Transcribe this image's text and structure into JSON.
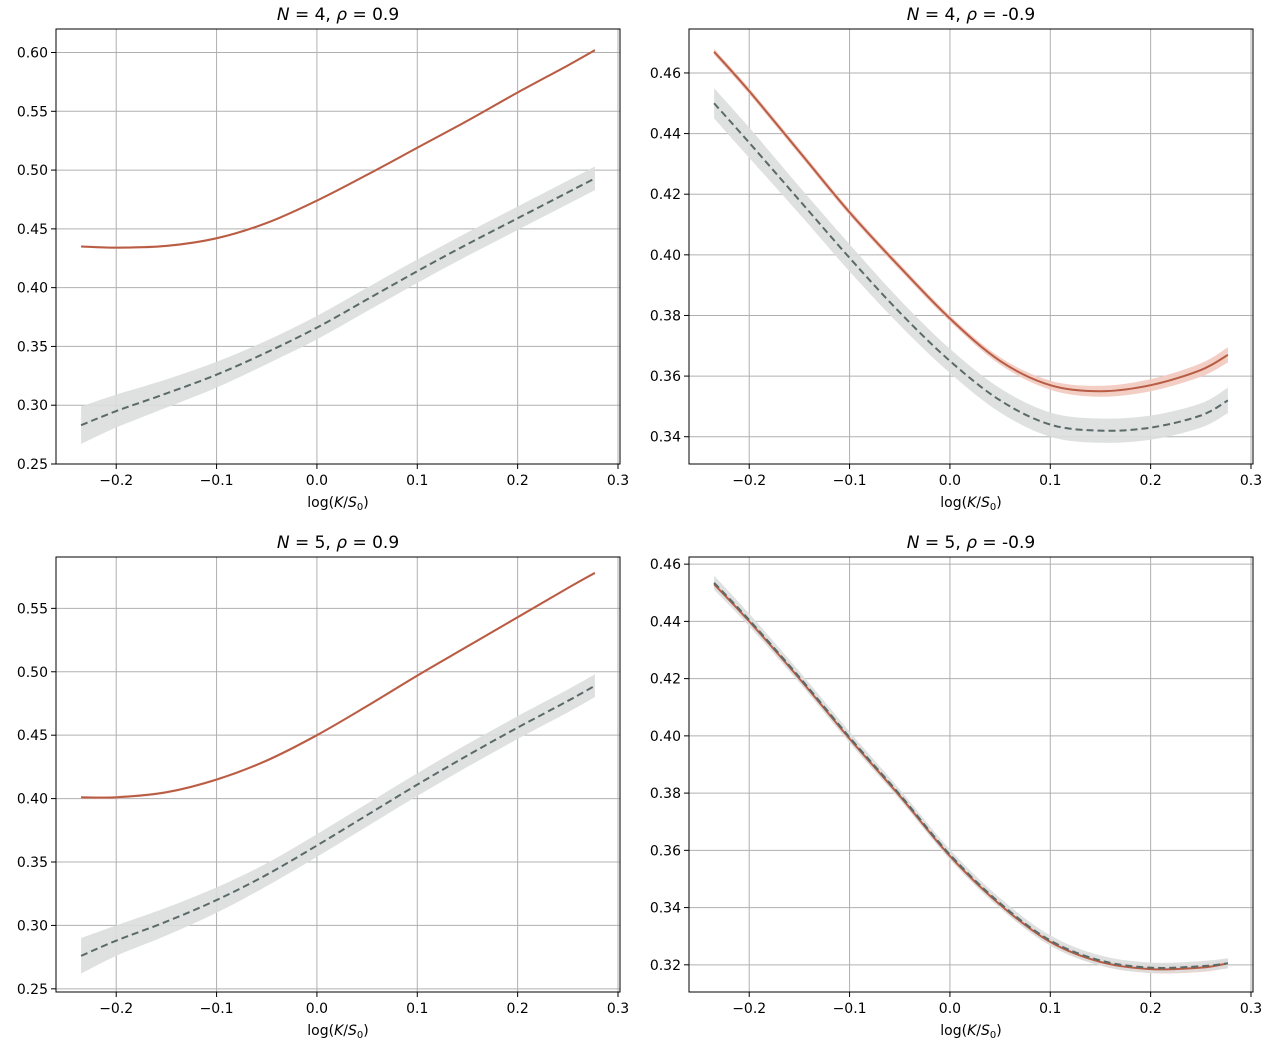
{
  "figure": {
    "title": ""
  },
  "chart_data": [
    {
      "type": "line",
      "title": "N = 4,  ρ = 0.9",
      "title_parts": {
        "n_sym": "N",
        "n_eq": " = 4,  ",
        "rho_sym": "ρ",
        "rho_eq": " = 0.9"
      },
      "xlabel": "log(K/S₀)",
      "xlabel_parts": {
        "pre": "log(",
        "k": "K",
        "slash": "/",
        "s": "S",
        "sub": "0",
        "post": ")"
      },
      "ylabel": "",
      "xlim": [
        -0.26,
        0.302
      ],
      "ylim": [
        0.25,
        0.62
      ],
      "xticks": [
        -0.2,
        -0.1,
        0.0,
        0.1,
        0.2,
        0.3
      ],
      "xtick_labels": [
        "−0.2",
        "−0.1",
        "0.0",
        "0.1",
        "0.2",
        "0.3"
      ],
      "yticks": [
        0.25,
        0.3,
        0.35,
        0.4,
        0.45,
        0.5,
        0.55,
        0.6
      ],
      "ytick_labels": [
        "0.25",
        "0.30",
        "0.35",
        "0.40",
        "0.45",
        "0.50",
        "0.55",
        "0.60"
      ],
      "grid": true,
      "x": [
        -0.235,
        -0.2,
        -0.15,
        -0.1,
        -0.05,
        0.0,
        0.05,
        0.1,
        0.15,
        0.2,
        0.25,
        0.277
      ],
      "series": [
        {
          "name": "solid",
          "style": "solid",
          "color": "#b85c44",
          "band_color": "#f2c9bf",
          "values": [
            0.435,
            0.434,
            0.4355,
            0.442,
            0.455,
            0.474,
            0.496,
            0.519,
            0.542,
            0.566,
            0.589,
            0.602
          ],
          "band": [
            0.001,
            0.001,
            0.001,
            0.001,
            0.001,
            0.001,
            0.001,
            0.001,
            0.001,
            0.001,
            0.001,
            0.001
          ]
        },
        {
          "name": "dashed",
          "style": "dashed",
          "color": "#5a6a68",
          "band_color": "#dcdedd",
          "values": [
            0.283,
            0.295,
            0.31,
            0.326,
            0.345,
            0.366,
            0.39,
            0.414,
            0.437,
            0.459,
            0.481,
            0.493
          ],
          "band": [
            0.016,
            0.014,
            0.012,
            0.011,
            0.01,
            0.01,
            0.01,
            0.01,
            0.01,
            0.01,
            0.01,
            0.01
          ]
        }
      ]
    },
    {
      "type": "line",
      "title": "N = 4,  ρ = -0.9",
      "title_parts": {
        "n_sym": "N",
        "n_eq": " = 4,  ",
        "rho_sym": "ρ",
        "rho_eq": " = -0.9"
      },
      "xlabel": "log(K/S₀)",
      "xlabel_parts": {
        "pre": "log(",
        "k": "K",
        "slash": "/",
        "s": "S",
        "sub": "0",
        "post": ")"
      },
      "ylabel": "",
      "xlim": [
        -0.26,
        0.302
      ],
      "ylim": [
        0.331,
        0.4745
      ],
      "xticks": [
        -0.2,
        -0.1,
        0.0,
        0.1,
        0.2,
        0.3
      ],
      "xtick_labels": [
        "−0.2",
        "−0.1",
        "0.0",
        "0.1",
        "0.2",
        "0.3"
      ],
      "yticks": [
        0.34,
        0.36,
        0.38,
        0.4,
        0.42,
        0.44,
        0.46
      ],
      "ytick_labels": [
        "0.34",
        "0.36",
        "0.38",
        "0.40",
        "0.42",
        "0.44",
        "0.46"
      ],
      "grid": true,
      "x": [
        -0.235,
        -0.2,
        -0.15,
        -0.1,
        -0.05,
        0.0,
        0.05,
        0.1,
        0.15,
        0.2,
        0.25,
        0.277
      ],
      "series": [
        {
          "name": "solid",
          "style": "solid",
          "color": "#b85c44",
          "band_color": "#f2c9bf",
          "values": [
            0.467,
            0.454,
            0.434,
            0.414,
            0.396,
            0.379,
            0.365,
            0.357,
            0.355,
            0.357,
            0.362,
            0.367
          ],
          "band": [
            0.001,
            0.001,
            0.001,
            0.001,
            0.001,
            0.001,
            0.0012,
            0.0015,
            0.0018,
            0.002,
            0.0022,
            0.0025
          ]
        },
        {
          "name": "dashed",
          "style": "dashed",
          "color": "#5a6a68",
          "band_color": "#dcdedd",
          "values": [
            0.45,
            0.437,
            0.418,
            0.399,
            0.381,
            0.365,
            0.352,
            0.344,
            0.342,
            0.343,
            0.347,
            0.352
          ],
          "band": [
            0.005,
            0.005,
            0.0045,
            0.0045,
            0.0042,
            0.004,
            0.004,
            0.004,
            0.004,
            0.004,
            0.004,
            0.0042
          ]
        }
      ]
    },
    {
      "type": "line",
      "title": "N = 5,  ρ = 0.9",
      "title_parts": {
        "n_sym": "N",
        "n_eq": " = 5,  ",
        "rho_sym": "ρ",
        "rho_eq": " = 0.9"
      },
      "xlabel": "log(K/S₀)",
      "xlabel_parts": {
        "pre": "log(",
        "k": "K",
        "slash": "/",
        "s": "S",
        "sub": "0",
        "post": ")"
      },
      "ylabel": "",
      "xlim": [
        -0.26,
        0.302
      ],
      "ylim": [
        0.2475,
        0.5905
      ],
      "xticks": [
        -0.2,
        -0.1,
        0.0,
        0.1,
        0.2,
        0.3
      ],
      "xtick_labels": [
        "−0.2",
        "−0.1",
        "0.0",
        "0.1",
        "0.2",
        "0.3"
      ],
      "yticks": [
        0.25,
        0.3,
        0.35,
        0.4,
        0.45,
        0.5,
        0.55
      ],
      "ytick_labels": [
        "0.25",
        "0.30",
        "0.35",
        "0.40",
        "0.45",
        "0.50",
        "0.55"
      ],
      "grid": true,
      "x": [
        -0.235,
        -0.2,
        -0.15,
        -0.1,
        -0.05,
        0.0,
        0.05,
        0.1,
        0.15,
        0.2,
        0.25,
        0.277
      ],
      "series": [
        {
          "name": "solid",
          "style": "solid",
          "color": "#b85c44",
          "band_color": "#f2c9bf",
          "values": [
            0.401,
            0.401,
            0.405,
            0.415,
            0.43,
            0.45,
            0.473,
            0.497,
            0.52,
            0.543,
            0.566,
            0.578
          ],
          "band": [
            0.001,
            0.001,
            0.001,
            0.001,
            0.001,
            0.001,
            0.001,
            0.001,
            0.001,
            0.001,
            0.001,
            0.001
          ]
        },
        {
          "name": "dashed",
          "style": "dashed",
          "color": "#5a6a68",
          "band_color": "#dcdedd",
          "values": [
            0.276,
            0.288,
            0.303,
            0.32,
            0.34,
            0.363,
            0.387,
            0.411,
            0.434,
            0.456,
            0.477,
            0.489
          ],
          "band": [
            0.014,
            0.012,
            0.011,
            0.01,
            0.009,
            0.009,
            0.009,
            0.009,
            0.009,
            0.009,
            0.009,
            0.009
          ]
        }
      ]
    },
    {
      "type": "line",
      "title": "N = 5,  ρ = -0.9",
      "title_parts": {
        "n_sym": "N",
        "n_eq": " = 5,  ",
        "rho_sym": "ρ",
        "rho_eq": " = -0.9"
      },
      "xlabel": "log(K/S₀)",
      "xlabel_parts": {
        "pre": "log(",
        "k": "K",
        "slash": "/",
        "s": "S",
        "sub": "0",
        "post": ")"
      },
      "ylabel": "",
      "xlim": [
        -0.26,
        0.302
      ],
      "ylim": [
        0.3105,
        0.4625
      ],
      "xticks": [
        -0.2,
        -0.1,
        0.0,
        0.1,
        0.2,
        0.3
      ],
      "xtick_labels": [
        "−0.2",
        "−0.1",
        "0.0",
        "0.1",
        "0.2",
        "0.3"
      ],
      "yticks": [
        0.32,
        0.34,
        0.36,
        0.38,
        0.4,
        0.42,
        0.44,
        0.46
      ],
      "ytick_labels": [
        "0.32",
        "0.34",
        "0.36",
        "0.38",
        "0.40",
        "0.42",
        "0.44",
        "0.46"
      ],
      "grid": true,
      "x": [
        -0.235,
        -0.2,
        -0.15,
        -0.1,
        -0.05,
        0.0,
        0.05,
        0.1,
        0.15,
        0.2,
        0.25,
        0.277
      ],
      "series": [
        {
          "name": "solid",
          "style": "solid",
          "color": "#b85c44",
          "band_color": "#f2c9bf",
          "values": [
            0.453,
            0.44,
            0.42,
            0.399,
            0.379,
            0.358,
            0.341,
            0.328,
            0.321,
            0.3185,
            0.319,
            0.3205
          ],
          "band": [
            0.001,
            0.001,
            0.001,
            0.001,
            0.001,
            0.001,
            0.001,
            0.0012,
            0.0013,
            0.0014,
            0.0015,
            0.0016
          ]
        },
        {
          "name": "dashed",
          "style": "dashed",
          "color": "#5a6a68",
          "band_color": "#dcdedd",
          "values": [
            0.4535,
            0.4405,
            0.4205,
            0.3995,
            0.3795,
            0.3585,
            0.3415,
            0.3285,
            0.3215,
            0.319,
            0.3195,
            0.3205
          ],
          "band": [
            0.0025,
            0.0022,
            0.002,
            0.002,
            0.0018,
            0.0018,
            0.0018,
            0.0018,
            0.0018,
            0.0018,
            0.0018,
            0.0018
          ]
        }
      ]
    }
  ]
}
